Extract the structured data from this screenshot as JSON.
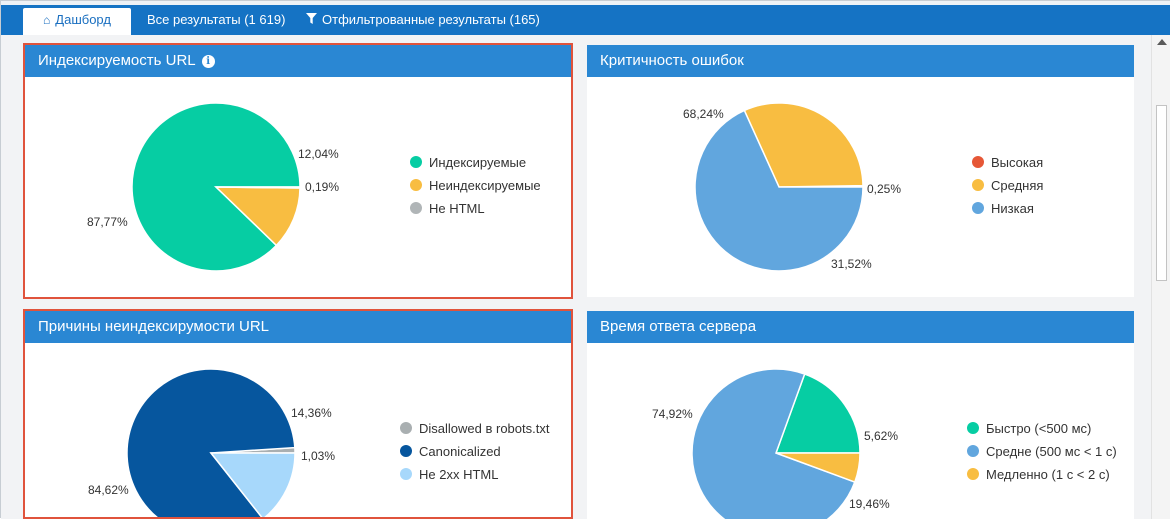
{
  "tabs": [
    {
      "label": "Дашборд",
      "icon": "home-icon",
      "active": true
    },
    {
      "label": "Все результаты (1 619)",
      "active": false
    },
    {
      "label": "Отфильтрованные результаты (165)",
      "icon": "filter-icon",
      "active": false
    }
  ],
  "panels": {
    "indexability": {
      "title": "Индексируемость URL",
      "icon": "info-icon",
      "highlighted": true,
      "labels": [
        "87,77%",
        "12,04%",
        "0,19%"
      ],
      "legend": [
        "Индексируемые",
        "Неиндексируемые",
        "Не HTML"
      ]
    },
    "severity": {
      "title": "Критичность ошибок",
      "highlighted": false,
      "labels": [
        "0,25%",
        "31,52%",
        "68,24%"
      ],
      "legend": [
        "Высокая",
        "Средняя",
        "Низкая"
      ]
    },
    "reasons": {
      "title": "Причины неиндексирумости URL",
      "highlighted": true,
      "labels": [
        "1,03%",
        "84,62%",
        "14,36%"
      ],
      "legend": [
        "Disallowed в robots.txt",
        "Canonicalized",
        "Не 2xx HTML"
      ]
    },
    "response": {
      "title": "Время ответа сервера",
      "highlighted": false,
      "labels": [
        "19,46%",
        "74,92%",
        "5,62%"
      ],
      "legend": [
        "Быстро (<500 мс)",
        "Средне (500 мс < 1 с)",
        "Медленно (1 с < 2 с)"
      ]
    }
  },
  "chart_data": [
    {
      "type": "pie",
      "title": "Индексируемость URL",
      "categories": [
        "Индексируемые",
        "Неиндексируемые",
        "Не HTML"
      ],
      "values": [
        87.77,
        12.04,
        0.19
      ],
      "colors": [
        "#06cda3",
        "#f8bd41",
        "#b0b5b7"
      ],
      "legend": "right"
    },
    {
      "type": "pie",
      "title": "Критичность ошибок",
      "categories": [
        "Высокая",
        "Средняя",
        "Низкая"
      ],
      "values": [
        0.25,
        31.52,
        68.24
      ],
      "colors": [
        "#e65736",
        "#f8bd41",
        "#61a6de"
      ],
      "legend": "right"
    },
    {
      "type": "pie",
      "title": "Причины неиндексирумости URL",
      "categories": [
        "Disallowed в robots.txt",
        "Canonicalized",
        "Не 2xx HTML"
      ],
      "values": [
        1.03,
        84.62,
        14.36
      ],
      "colors": [
        "#a9afb1",
        "#06569e",
        "#a7d8fb"
      ],
      "legend": "right"
    },
    {
      "type": "pie",
      "title": "Время ответа сервера",
      "categories": [
        "Быстро (<500 мс)",
        "Средне (500 мс < 1 с)",
        "Медленно (1 с < 2 с)"
      ],
      "values": [
        19.46,
        74.92,
        5.62
      ],
      "colors": [
        "#06cda3",
        "#61a6de",
        "#f8bd41"
      ],
      "legend": "right"
    }
  ],
  "colors": {
    "header_bar": "#1573c4",
    "panel_header": "#2a87d3",
    "highlight_border": "#e0533c"
  }
}
